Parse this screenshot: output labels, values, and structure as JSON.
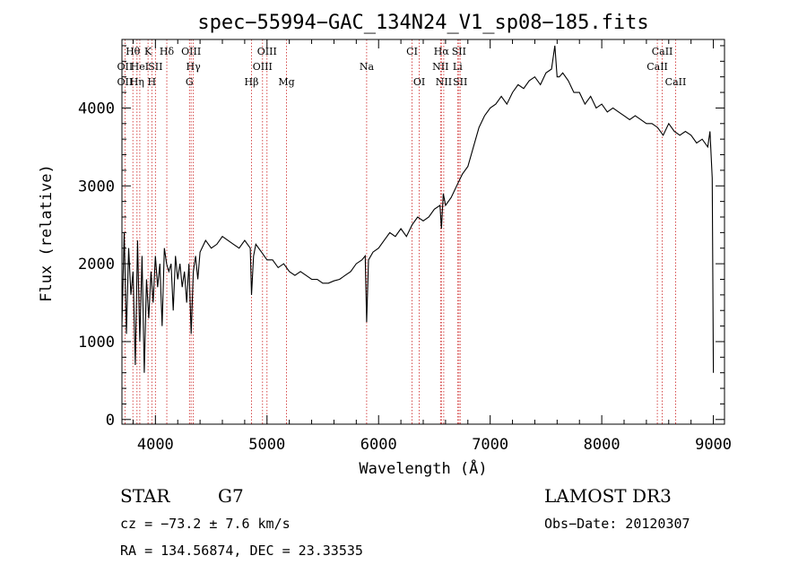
{
  "chart_data": {
    "type": "line",
    "title": "spec−55994−GAC_134N24_V1_sp08−185.fits",
    "xlabel": "Wavelength (Å)",
    "ylabel": "Flux (relative)",
    "xlim": [
      3700,
      9100
    ],
    "ylim": [
      -60,
      4880
    ],
    "xticks": [
      4000,
      5000,
      6000,
      7000,
      8000,
      9000
    ],
    "yticks": [
      0,
      1000,
      2000,
      3000,
      4000
    ],
    "grid": false,
    "series": [
      {
        "name": "spectrum",
        "x": [
          3700,
          3720,
          3740,
          3760,
          3780,
          3800,
          3820,
          3840,
          3860,
          3880,
          3900,
          3920,
          3940,
          3960,
          3980,
          4000,
          4020,
          4040,
          4060,
          4080,
          4100,
          4120,
          4140,
          4160,
          4180,
          4200,
          4220,
          4240,
          4260,
          4280,
          4300,
          4320,
          4340,
          4360,
          4380,
          4400,
          4450,
          4500,
          4550,
          4600,
          4650,
          4700,
          4750,
          4800,
          4850,
          4861,
          4880,
          4900,
          4950,
          5000,
          5050,
          5100,
          5150,
          5200,
          5250,
          5300,
          5350,
          5400,
          5450,
          5500,
          5550,
          5600,
          5650,
          5700,
          5750,
          5800,
          5850,
          5880,
          5893,
          5910,
          5950,
          6000,
          6050,
          6100,
          6150,
          6200,
          6250,
          6300,
          6350,
          6400,
          6450,
          6500,
          6550,
          6563,
          6580,
          6600,
          6650,
          6700,
          6750,
          6800,
          6850,
          6900,
          6950,
          7000,
          7050,
          7100,
          7150,
          7200,
          7250,
          7300,
          7350,
          7400,
          7450,
          7500,
          7550,
          7580,
          7600,
          7620,
          7650,
          7700,
          7750,
          7800,
          7850,
          7900,
          7950,
          8000,
          8050,
          8100,
          8150,
          8200,
          8250,
          8300,
          8350,
          8400,
          8450,
          8500,
          8550,
          8600,
          8650,
          8700,
          8750,
          8800,
          8850,
          8900,
          8950,
          8970,
          8990,
          9000
        ],
        "values": [
          1200,
          2400,
          1100,
          2200,
          1600,
          1900,
          700,
          2300,
          1000,
          2100,
          600,
          1800,
          1300,
          1900,
          1500,
          2100,
          1700,
          2000,
          1200,
          2200,
          2000,
          1900,
          2000,
          1400,
          2100,
          1800,
          2000,
          1700,
          1900,
          1500,
          2000,
          1100,
          1900,
          2100,
          1800,
          2150,
          2300,
          2200,
          2250,
          2350,
          2300,
          2250,
          2200,
          2300,
          2200,
          1600,
          2100,
          2250,
          2150,
          2050,
          2050,
          1950,
          2000,
          1900,
          1850,
          1900,
          1850,
          1800,
          1800,
          1750,
          1750,
          1780,
          1800,
          1850,
          1900,
          2000,
          2050,
          2100,
          1250,
          2050,
          2150,
          2200,
          2300,
          2400,
          2350,
          2450,
          2350,
          2500,
          2600,
          2550,
          2600,
          2700,
          2750,
          2450,
          2900,
          2750,
          2850,
          3000,
          3150,
          3250,
          3500,
          3750,
          3900,
          4000,
          4050,
          4150,
          4050,
          4200,
          4300,
          4250,
          4350,
          4400,
          4300,
          4450,
          4500,
          4800,
          4400,
          4400,
          4450,
          4350,
          4200,
          4200,
          4050,
          4150,
          4000,
          4050,
          3950,
          4000,
          3950,
          3900,
          3850,
          3900,
          3850,
          3800,
          3800,
          3750,
          3650,
          3800,
          3700,
          3650,
          3700,
          3650,
          3550,
          3600,
          3500,
          3700,
          3100,
          600
        ]
      }
    ],
    "spectral_lines": [
      {
        "label": "Hθ",
        "x": 3798,
        "row": 1
      },
      {
        "label": "K",
        "x": 3934,
        "row": 1
      },
      {
        "label": "Hδ",
        "x": 4102,
        "row": 1
      },
      {
        "label": "OIII",
        "x": 4320,
        "row": 1
      },
      {
        "label": "OIII",
        "x": 5000,
        "row": 1
      },
      {
        "label": "CI",
        "x": 6300,
        "row": 1
      },
      {
        "label": "Hα",
        "x": 6563,
        "row": 1
      },
      {
        "label": "SII",
        "x": 6720,
        "row": 1
      },
      {
        "label": "CaII",
        "x": 8542,
        "row": 1
      },
      {
        "label": "OII",
        "x": 3727,
        "row": 2
      },
      {
        "label": "HeI",
        "x": 3860,
        "row": 2
      },
      {
        "label": "SII",
        "x": 4000,
        "row": 2
      },
      {
        "label": "Hγ",
        "x": 4340,
        "row": 2
      },
      {
        "label": "OIII",
        "x": 4960,
        "row": 2
      },
      {
        "label": "Na",
        "x": 5893,
        "row": 2
      },
      {
        "label": "NII",
        "x": 6555,
        "row": 2
      },
      {
        "label": "Li",
        "x": 6708,
        "row": 2
      },
      {
        "label": "CaII",
        "x": 8498,
        "row": 2
      },
      {
        "label": "OII",
        "x": 3727,
        "row": 3
      },
      {
        "label": "Hη",
        "x": 3835,
        "row": 3
      },
      {
        "label": "H",
        "x": 3968,
        "row": 3
      },
      {
        "label": "G",
        "x": 4305,
        "row": 3
      },
      {
        "label": "Hβ",
        "x": 4861,
        "row": 3
      },
      {
        "label": "Mg",
        "x": 5175,
        "row": 3
      },
      {
        "label": "OI",
        "x": 6364,
        "row": 3
      },
      {
        "label": "NII",
        "x": 6584,
        "row": 3
      },
      {
        "label": "SII",
        "x": 6731,
        "row": 3
      },
      {
        "label": "CaII",
        "x": 8662,
        "row": 3
      }
    ]
  },
  "footer": {
    "object_type": "STAR",
    "subclass": "G7",
    "survey": "LAMOST DR3",
    "velocity": "cz = −73.2 ± 7.6 km/s",
    "obs_date": "Obs−Date: 20120307",
    "coords": "RA = 134.56874, DEC =  23.33535"
  },
  "colors": {
    "axis": "#000000",
    "spectrum": "#000000",
    "line_marker": "#cc2222"
  }
}
